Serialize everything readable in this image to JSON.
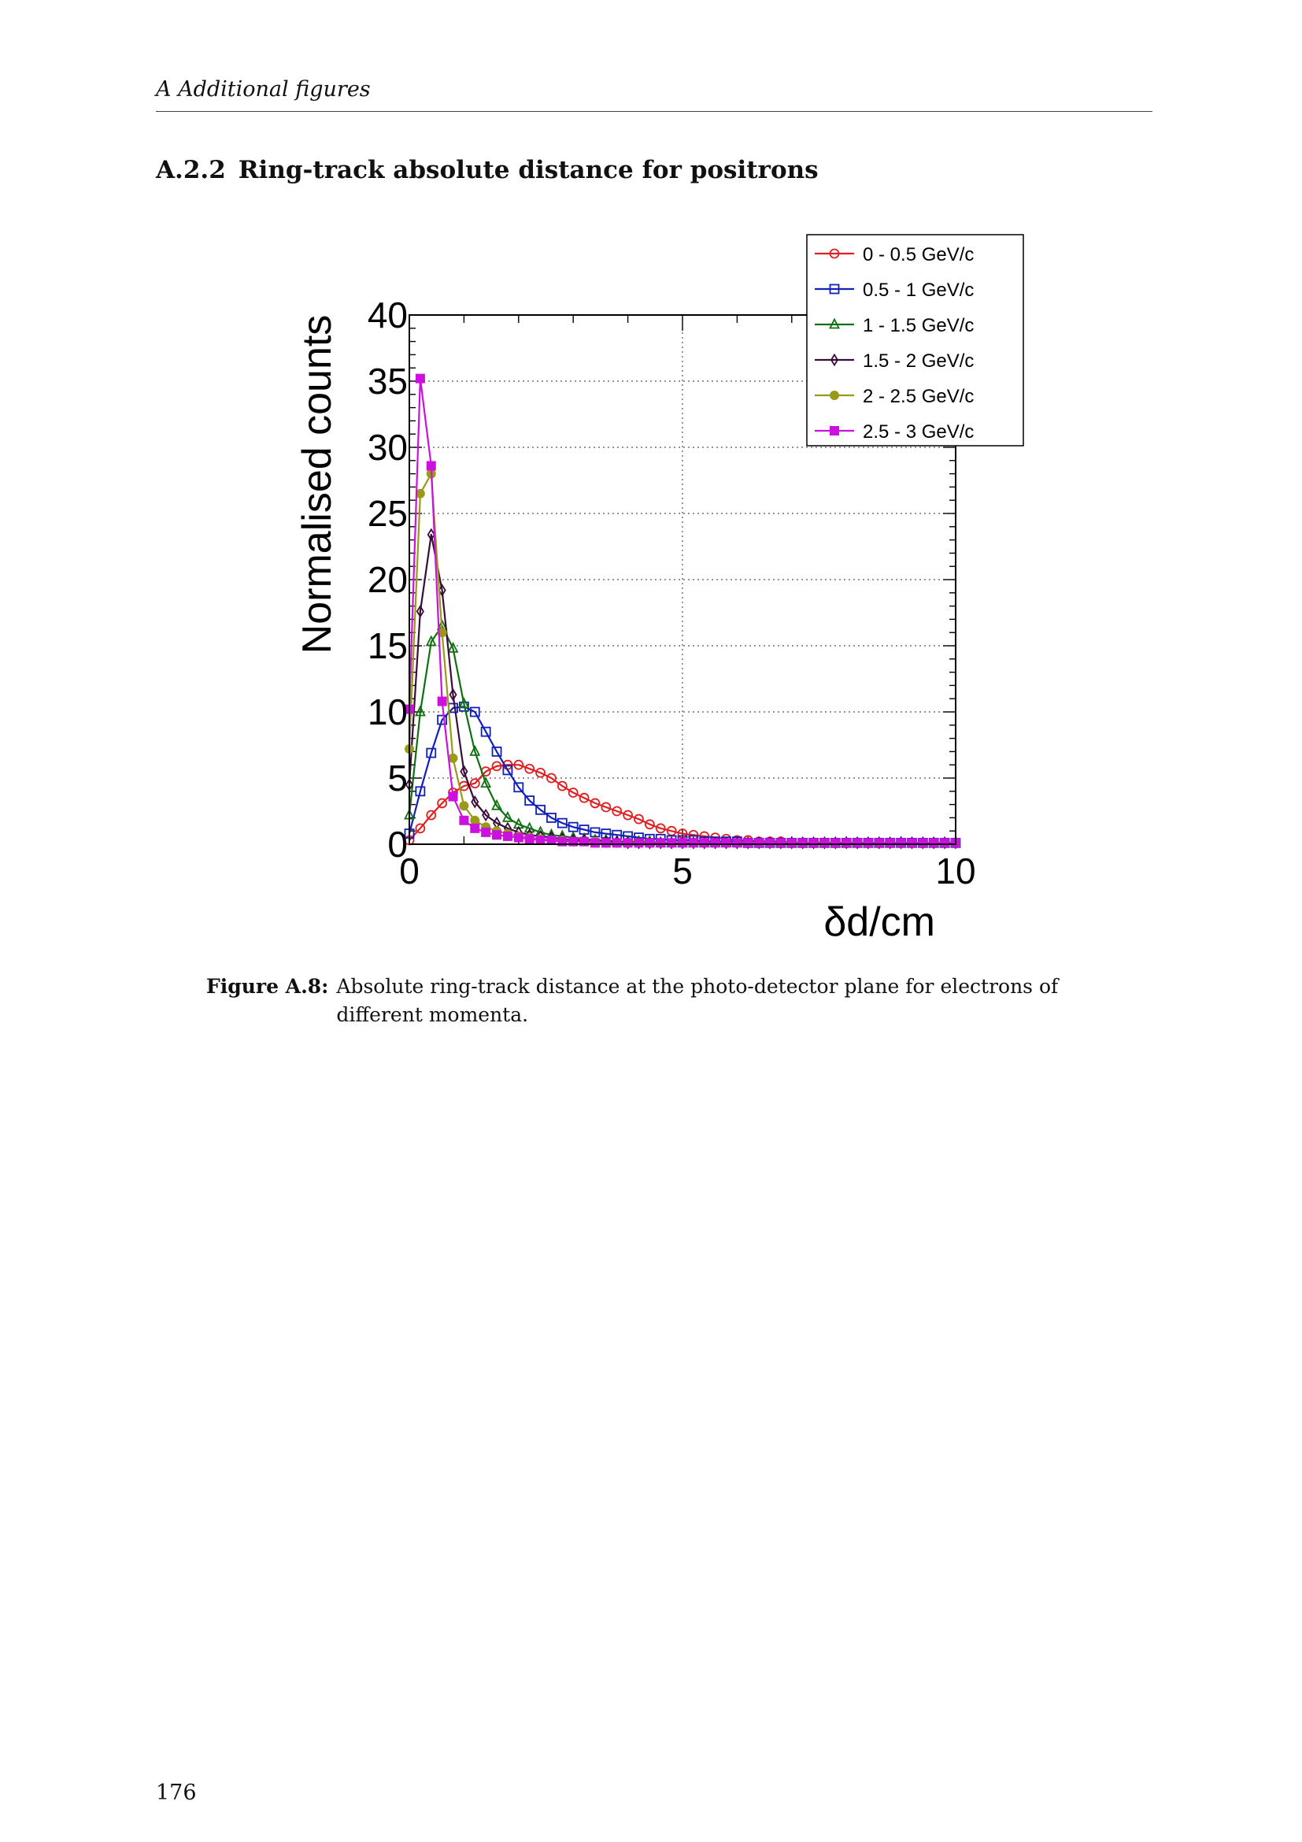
{
  "header": {
    "running_title": "A  Additional figures"
  },
  "section": {
    "number": "A.2.2",
    "title": "Ring-track absolute distance for positrons"
  },
  "figure": {
    "caption_label": "Figure A.8:",
    "caption_text": "Absolute ring-track distance at the photo-detector plane for electrons of different momenta."
  },
  "page_number": "176",
  "chart_data": {
    "type": "line",
    "xlabel": "δd/cm",
    "ylabel": "Normalised counts",
    "xlim": [
      0,
      10
    ],
    "ylim": [
      0,
      40
    ],
    "x_ticks": [
      "0",
      "5",
      "10"
    ],
    "y_ticks": [
      "0",
      "5",
      "10",
      "15",
      "20",
      "25",
      "30",
      "35",
      "40"
    ],
    "grid": true,
    "legend_position": "top-right",
    "series": [
      {
        "name": "0 - 0.5 GeV/c",
        "color": "#e02020",
        "marker": "open-circle",
        "x": [
          0,
          0.2,
          0.4,
          0.6,
          0.8,
          1.0,
          1.2,
          1.4,
          1.6,
          1.8,
          2.0,
          2.2,
          2.4,
          2.6,
          2.8,
          3.0,
          3.2,
          3.4,
          3.6,
          3.8,
          4.0,
          4.2,
          4.4,
          4.6,
          4.8,
          5.0,
          5.2,
          5.4,
          5.6,
          5.8,
          6.0,
          6.2,
          6.4,
          6.6,
          6.8,
          7.0,
          7.2,
          7.4,
          7.6,
          7.8,
          8.0,
          8.2,
          8.4,
          8.6,
          8.8,
          9.0,
          9.2,
          9.4,
          9.6,
          9.8,
          10.0
        ],
        "y": [
          0.3,
          1.2,
          2.2,
          3.1,
          3.9,
          4.4,
          4.6,
          5.5,
          5.9,
          6.0,
          6.0,
          5.7,
          5.4,
          5.0,
          4.4,
          3.9,
          3.5,
          3.1,
          2.8,
          2.5,
          2.2,
          1.9,
          1.5,
          1.2,
          1.0,
          0.8,
          0.7,
          0.6,
          0.5,
          0.4,
          0.3,
          0.3,
          0.2,
          0.2,
          0.2,
          0.1,
          0.1,
          0.1,
          0.1,
          0.1,
          0.1,
          0.1,
          0.1,
          0.1,
          0.1,
          0.1,
          0.1,
          0.1,
          0.1,
          0.1,
          0.1
        ]
      },
      {
        "name": "0.5  - 1 GeV/c",
        "color": "#1020b8",
        "marker": "open-square",
        "x": [
          0,
          0.2,
          0.4,
          0.6,
          0.8,
          1.0,
          1.2,
          1.4,
          1.6,
          1.8,
          2.0,
          2.2,
          2.4,
          2.6,
          2.8,
          3.0,
          3.2,
          3.4,
          3.6,
          3.8,
          4.0,
          4.2,
          4.4,
          4.6,
          4.8,
          5.0,
          5.2,
          5.4,
          5.6,
          5.8,
          6.0,
          6.2,
          6.4,
          6.6,
          6.8,
          7.0,
          7.2,
          7.4,
          7.6,
          7.8,
          8.0,
          8.2,
          8.4,
          8.6,
          8.8,
          9.0,
          9.2,
          9.4,
          9.6,
          9.8,
          10.0
        ],
        "y": [
          0.8,
          4.0,
          6.9,
          9.4,
          10.3,
          10.4,
          10.0,
          8.5,
          7.0,
          5.6,
          4.3,
          3.3,
          2.6,
          2.0,
          1.6,
          1.3,
          1.1,
          0.9,
          0.8,
          0.7,
          0.6,
          0.5,
          0.4,
          0.4,
          0.3,
          0.3,
          0.3,
          0.2,
          0.2,
          0.2,
          0.2,
          0.1,
          0.1,
          0.1,
          0.1,
          0.1,
          0.1,
          0.1,
          0.1,
          0.1,
          0.1,
          0.1,
          0.1,
          0.1,
          0.1,
          0.1,
          0.1,
          0.1,
          0.1,
          0.1,
          0.1
        ]
      },
      {
        "name": "1 - 1.5 GeV/c",
        "color": "#107010",
        "marker": "open-triangle",
        "x": [
          0,
          0.2,
          0.4,
          0.6,
          0.8,
          1.0,
          1.2,
          1.4,
          1.6,
          1.8,
          2.0,
          2.2,
          2.4,
          2.6,
          2.8,
          3.0,
          3.2,
          3.4,
          3.6,
          3.8,
          4.0,
          4.2,
          4.4,
          4.6,
          4.8,
          5.0,
          5.2,
          5.4,
          5.6,
          5.8,
          6.0,
          6.2,
          6.4,
          6.6,
          6.8,
          7.0,
          7.2,
          7.4,
          7.6,
          7.8,
          8.0,
          8.2,
          8.4,
          8.6,
          8.8,
          9.0,
          9.2,
          9.4,
          9.6,
          9.8,
          10.0
        ],
        "y": [
          2.2,
          10.0,
          15.3,
          16.5,
          14.8,
          10.6,
          7.0,
          4.6,
          2.9,
          2.0,
          1.5,
          1.2,
          0.9,
          0.7,
          0.6,
          0.5,
          0.4,
          0.3,
          0.3,
          0.2,
          0.2,
          0.2,
          0.2,
          0.1,
          0.1,
          0.1,
          0.1,
          0.1,
          0.1,
          0.1,
          0.1,
          0.1,
          0.1,
          0.1,
          0.1,
          0.1,
          0.1,
          0.1,
          0.1,
          0.1,
          0.1,
          0.1,
          0.1,
          0.1,
          0.1,
          0.1,
          0.1,
          0.1,
          0.1,
          0.1,
          0.1
        ]
      },
      {
        "name": "1.5 - 2 GeV/c",
        "color": "#3a0c3a",
        "marker": "open-diamond",
        "x": [
          0,
          0.2,
          0.4,
          0.6,
          0.8,
          1.0,
          1.2,
          1.4,
          1.6,
          1.8,
          2.0,
          2.2,
          2.4,
          2.6,
          2.8,
          3.0,
          3.2,
          3.4,
          3.6,
          3.8,
          4.0,
          4.2,
          4.4,
          4.6,
          4.8,
          5.0,
          5.2,
          5.4,
          5.6,
          5.8,
          6.0,
          6.2,
          6.4,
          6.6,
          6.8,
          7.0,
          7.2,
          7.4,
          7.6,
          7.8,
          8.0,
          8.2,
          8.4,
          8.6,
          8.8,
          9.0,
          9.2,
          9.4,
          9.6,
          9.8,
          10.0
        ],
        "y": [
          4.5,
          17.6,
          23.4,
          19.2,
          11.3,
          5.5,
          3.2,
          2.2,
          1.6,
          1.2,
          0.9,
          0.7,
          0.6,
          0.5,
          0.4,
          0.3,
          0.3,
          0.2,
          0.2,
          0.2,
          0.1,
          0.1,
          0.1,
          0.1,
          0.1,
          0.1,
          0.1,
          0.1,
          0.1,
          0.1,
          0.1,
          0.1,
          0.1,
          0.1,
          0.1,
          0.1,
          0.1,
          0.1,
          0.1,
          0.1,
          0.1,
          0.1,
          0.1,
          0.1,
          0.1,
          0.1,
          0.1,
          0.1,
          0.1,
          0.1,
          0.1
        ]
      },
      {
        "name": "2 - 2.5 GeV/c",
        "color": "#9a9a1a",
        "marker": "filled-circle",
        "x": [
          0,
          0.2,
          0.4,
          0.6,
          0.8,
          1.0,
          1.2,
          1.4,
          1.6,
          1.8,
          2.0,
          2.2,
          2.4,
          2.6,
          2.8,
          3.0,
          3.2,
          3.4,
          3.6,
          3.8,
          4.0,
          4.2,
          4.4,
          4.6,
          4.8,
          5.0,
          5.2,
          5.4,
          5.6,
          5.8,
          6.0,
          6.2,
          6.4,
          6.6,
          6.8,
          7.0,
          7.2,
          7.4,
          7.6,
          7.8,
          8.0,
          8.2,
          8.4,
          8.6,
          8.8,
          9.0,
          9.2,
          9.4,
          9.6,
          9.8,
          10.0
        ],
        "y": [
          7.2,
          26.5,
          28.0,
          16.0,
          6.5,
          2.9,
          1.8,
          1.3,
          1.0,
          0.8,
          0.6,
          0.5,
          0.4,
          0.3,
          0.3,
          0.2,
          0.2,
          0.2,
          0.1,
          0.1,
          0.1,
          0.1,
          0.1,
          0.1,
          0.1,
          0.1,
          0.1,
          0.1,
          0.1,
          0.1,
          0.1,
          0.1,
          0.1,
          0.1,
          0.1,
          0.1,
          0.1,
          0.1,
          0.1,
          0.1,
          0.1,
          0.1,
          0.1,
          0.1,
          0.1,
          0.1,
          0.1,
          0.1,
          0.1,
          0.1,
          0.1
        ]
      },
      {
        "name": "2.5 - 3 GeV/c",
        "color": "#cc10dd",
        "marker": "filled-square",
        "x": [
          0,
          0.2,
          0.4,
          0.6,
          0.8,
          1.0,
          1.2,
          1.4,
          1.6,
          1.8,
          2.0,
          2.2,
          2.4,
          2.6,
          2.8,
          3.0,
          3.2,
          3.4,
          3.6,
          3.8,
          4.0,
          4.2,
          4.4,
          4.6,
          4.8,
          5.0,
          5.2,
          5.4,
          5.6,
          5.8,
          6.0,
          6.2,
          6.4,
          6.6,
          6.8,
          7.0,
          7.2,
          7.4,
          7.6,
          7.8,
          8.0,
          8.2,
          8.4,
          8.6,
          8.8,
          9.0,
          9.2,
          9.4,
          9.6,
          9.8,
          10.0
        ],
        "y": [
          10.2,
          35.2,
          28.6,
          10.8,
          3.6,
          1.8,
          1.2,
          0.9,
          0.7,
          0.6,
          0.5,
          0.4,
          0.3,
          0.3,
          0.2,
          0.2,
          0.2,
          0.1,
          0.1,
          0.1,
          0.1,
          0.1,
          0.1,
          0.1,
          0.1,
          0.1,
          0.1,
          0.1,
          0.1,
          0.1,
          0.1,
          0.1,
          0.1,
          0.1,
          0.1,
          0.1,
          0.1,
          0.1,
          0.1,
          0.1,
          0.1,
          0.1,
          0.1,
          0.1,
          0.1,
          0.1,
          0.1,
          0.1,
          0.1,
          0.1,
          0.1
        ]
      }
    ]
  }
}
